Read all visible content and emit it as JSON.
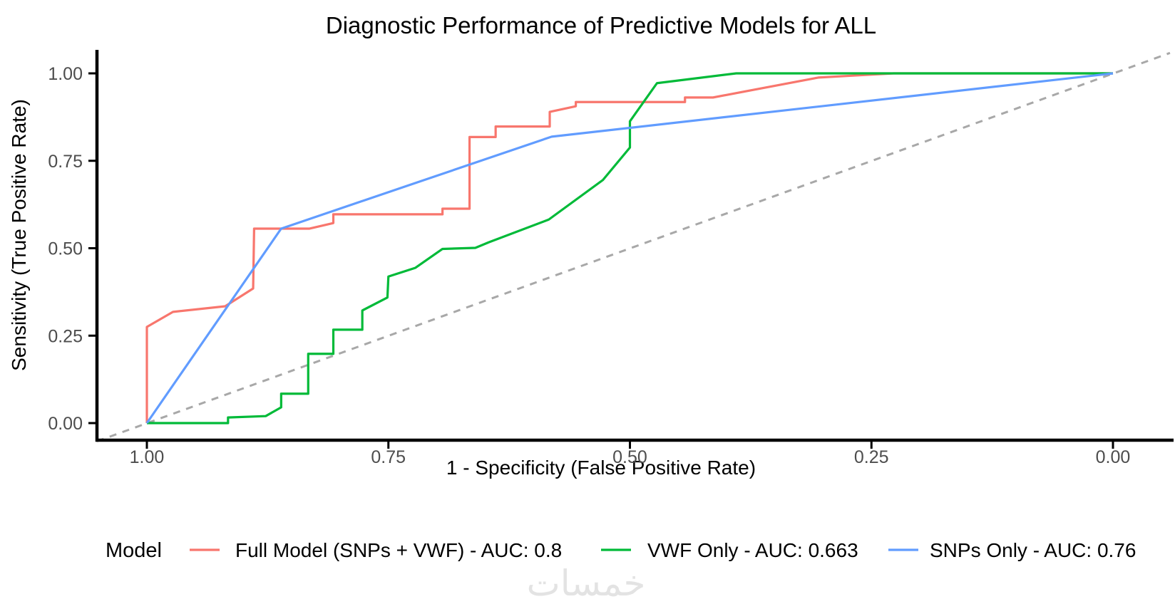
{
  "title": "Diagnostic Performance of Predictive Models for ALL",
  "legend": {
    "title": "Model",
    "position": "bottom"
  },
  "watermark": {
    "text": "خمسات"
  },
  "axis_style": {
    "tick_label_color": "#4d4d4d",
    "axis_line_color": "#000000"
  },
  "chart_data": {
    "type": "line",
    "subtype": "roc-curves",
    "title": "Diagnostic Performance of Predictive Models for ALL",
    "xlabel": "1 - Specificity (False Positive Rate)",
    "ylabel": "Sensitivity (True Positive Rate)",
    "xlim": [
      1.0,
      0.0
    ],
    "ylim": [
      0.0,
      1.0
    ],
    "x_axis_reversed": true,
    "grid": false,
    "legend_position": "bottom",
    "x_tick_values": [
      1.0,
      0.75,
      0.5,
      0.25,
      0.0
    ],
    "x_tick_labels": [
      "1.00",
      "0.75",
      "0.50",
      "0.25",
      "0.00"
    ],
    "y_tick_values": [
      0.0,
      0.25,
      0.5,
      0.75,
      1.0
    ],
    "y_tick_labels": [
      "0.00",
      "0.25",
      "0.50",
      "0.75",
      "1.00"
    ],
    "reference_line": {
      "style": "dashed",
      "color": "#a8a8a8",
      "from": {
        "x": 1.0517,
        "y": -0.0521
      },
      "to": {
        "x": -0.059,
        "y": 1.0584
      }
    },
    "series": [
      {
        "name": "Full Model (SNPs + VWF) - AUC: 0.8",
        "auc": 0.8,
        "color": "#F8766D",
        "points": [
          [
            1.0,
            0.0
          ],
          [
            1.0,
            0.275
          ],
          [
            0.973,
            0.318
          ],
          [
            0.919,
            0.334
          ],
          [
            0.89,
            0.385
          ],
          [
            0.889,
            0.556
          ],
          [
            0.832,
            0.556
          ],
          [
            0.807,
            0.572
          ],
          [
            0.807,
            0.597
          ],
          [
            0.694,
            0.597
          ],
          [
            0.694,
            0.613
          ],
          [
            0.666,
            0.613
          ],
          [
            0.666,
            0.818
          ],
          [
            0.639,
            0.818
          ],
          [
            0.639,
            0.848
          ],
          [
            0.583,
            0.848
          ],
          [
            0.583,
            0.89
          ],
          [
            0.556,
            0.906
          ],
          [
            0.556,
            0.918
          ],
          [
            0.443,
            0.918
          ],
          [
            0.443,
            0.931
          ],
          [
            0.414,
            0.931
          ],
          [
            0.305,
            0.988
          ],
          [
            0.266,
            0.994
          ],
          [
            0.227,
            1.0
          ],
          [
            0.0,
            1.0
          ]
        ]
      },
      {
        "name": "VWF Only - AUC: 0.663",
        "auc": 0.663,
        "color": "#00BA38",
        "points": [
          [
            1.0,
            0.0
          ],
          [
            0.916,
            0.0
          ],
          [
            0.916,
            0.016
          ],
          [
            0.877,
            0.02
          ],
          [
            0.861,
            0.045
          ],
          [
            0.861,
            0.084
          ],
          [
            0.833,
            0.084
          ],
          [
            0.833,
            0.198
          ],
          [
            0.807,
            0.198
          ],
          [
            0.807,
            0.267
          ],
          [
            0.777,
            0.267
          ],
          [
            0.777,
            0.322
          ],
          [
            0.751,
            0.359
          ],
          [
            0.75,
            0.419
          ],
          [
            0.722,
            0.444
          ],
          [
            0.694,
            0.498
          ],
          [
            0.66,
            0.501
          ],
          [
            0.646,
            0.517
          ],
          [
            0.584,
            0.582
          ],
          [
            0.528,
            0.695
          ],
          [
            0.5,
            0.788
          ],
          [
            0.5,
            0.863
          ],
          [
            0.472,
            0.972
          ],
          [
            0.39,
            1.0
          ],
          [
            0.0,
            1.0
          ]
        ]
      },
      {
        "name": "SNPs Only - AUC: 0.76",
        "auc": 0.76,
        "color": "#619CFF",
        "points": [
          [
            1.0,
            0.0
          ],
          [
            0.861,
            0.556
          ],
          [
            0.581,
            0.819
          ],
          [
            0.0,
            1.0
          ]
        ]
      }
    ]
  }
}
